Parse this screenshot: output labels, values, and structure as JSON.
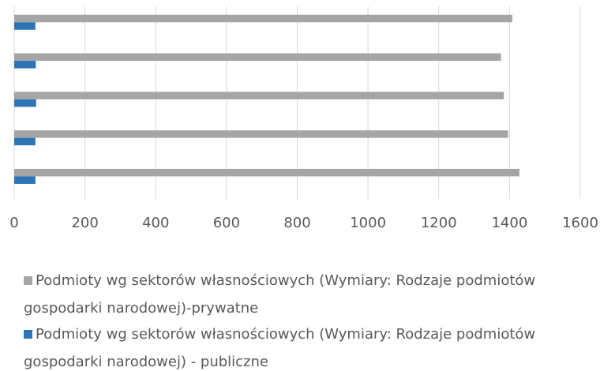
{
  "chart_data": {
    "type": "bar",
    "orientation": "horizontal",
    "categories": [
      null,
      null,
      null,
      null,
      null
    ],
    "series": [
      {
        "name": "Podmioty wg sektorów własnościowych (Wymiary: Rodzaje podmiotów gospodarki narodowej)-prywatne",
        "color": "#a5a5a5",
        "values": [
          1408,
          1376,
          1384,
          1396,
          1428
        ]
      },
      {
        "name": "Podmioty wg sektorów własnościowych (Wymiary: Rodzaje podmiotów gospodarki narodowej) - publiczne",
        "color": "#2e75b6",
        "values": [
          60,
          61,
          62,
          60,
          60
        ]
      }
    ],
    "xlim": [
      0,
      1600
    ],
    "xticks": [
      0,
      200,
      400,
      600,
      800,
      1000,
      1200,
      1400,
      1600
    ],
    "grid": true,
    "legend": "bottom"
  }
}
